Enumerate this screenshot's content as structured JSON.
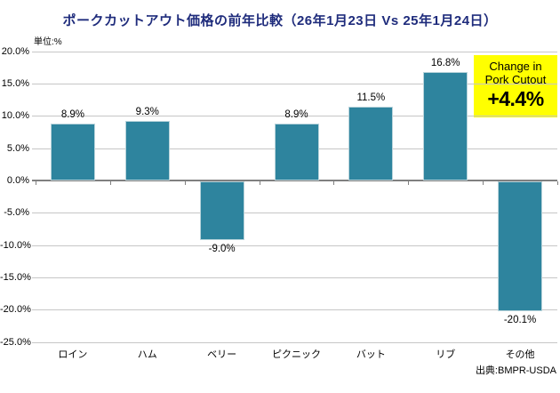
{
  "title": "ポークカットアウト価格の前年比較（26年1月23日 Vs 25年1月24日）",
  "unit_label": "単位:%",
  "source": "出典:BMPR-USDA",
  "callout": {
    "text": "Change in Pork Cutout",
    "line1": "Change in",
    "line2": "Pork Cutout",
    "value": "+4.4%",
    "background": "#FFFF00"
  },
  "colors": {
    "bar_fill": "#2E849E",
    "bar_border": "#B9D4DB",
    "title_text": "#1F2C7C",
    "gridline": "#C6C6C6",
    "zero_line": "#808080",
    "label_text": "#000000"
  },
  "chart_data": {
    "type": "bar",
    "title": "ポークカットアウト価格の前年比較（26年1月23日 Vs 25年1月24日）",
    "categories": [
      "ロイン",
      "ハム",
      "ベリー",
      "ピクニック",
      "バット",
      "リブ",
      "その他"
    ],
    "values": [
      8.9,
      9.3,
      -9.0,
      8.9,
      11.5,
      16.8,
      -20.1
    ],
    "value_labels": [
      "8.9%",
      "9.3%",
      "-9.0%",
      "8.9%",
      "11.5%",
      "16.8%",
      "-20.1%"
    ],
    "xlabel": "",
    "ylabel": "単位:%",
    "ylim": [
      -25,
      20
    ],
    "ytick_step": 5,
    "ytick_labels": [
      "20.0%",
      "15.0%",
      "10.0%",
      "5.0%",
      "0.0%",
      "-5.0%",
      "-10.0%",
      "-15.0%",
      "-20.0%",
      "-25.0%"
    ],
    "grid": true,
    "legend": false,
    "annotation": "Change in Pork Cutout +4.4%",
    "source": "出典:BMPR-USDA"
  }
}
